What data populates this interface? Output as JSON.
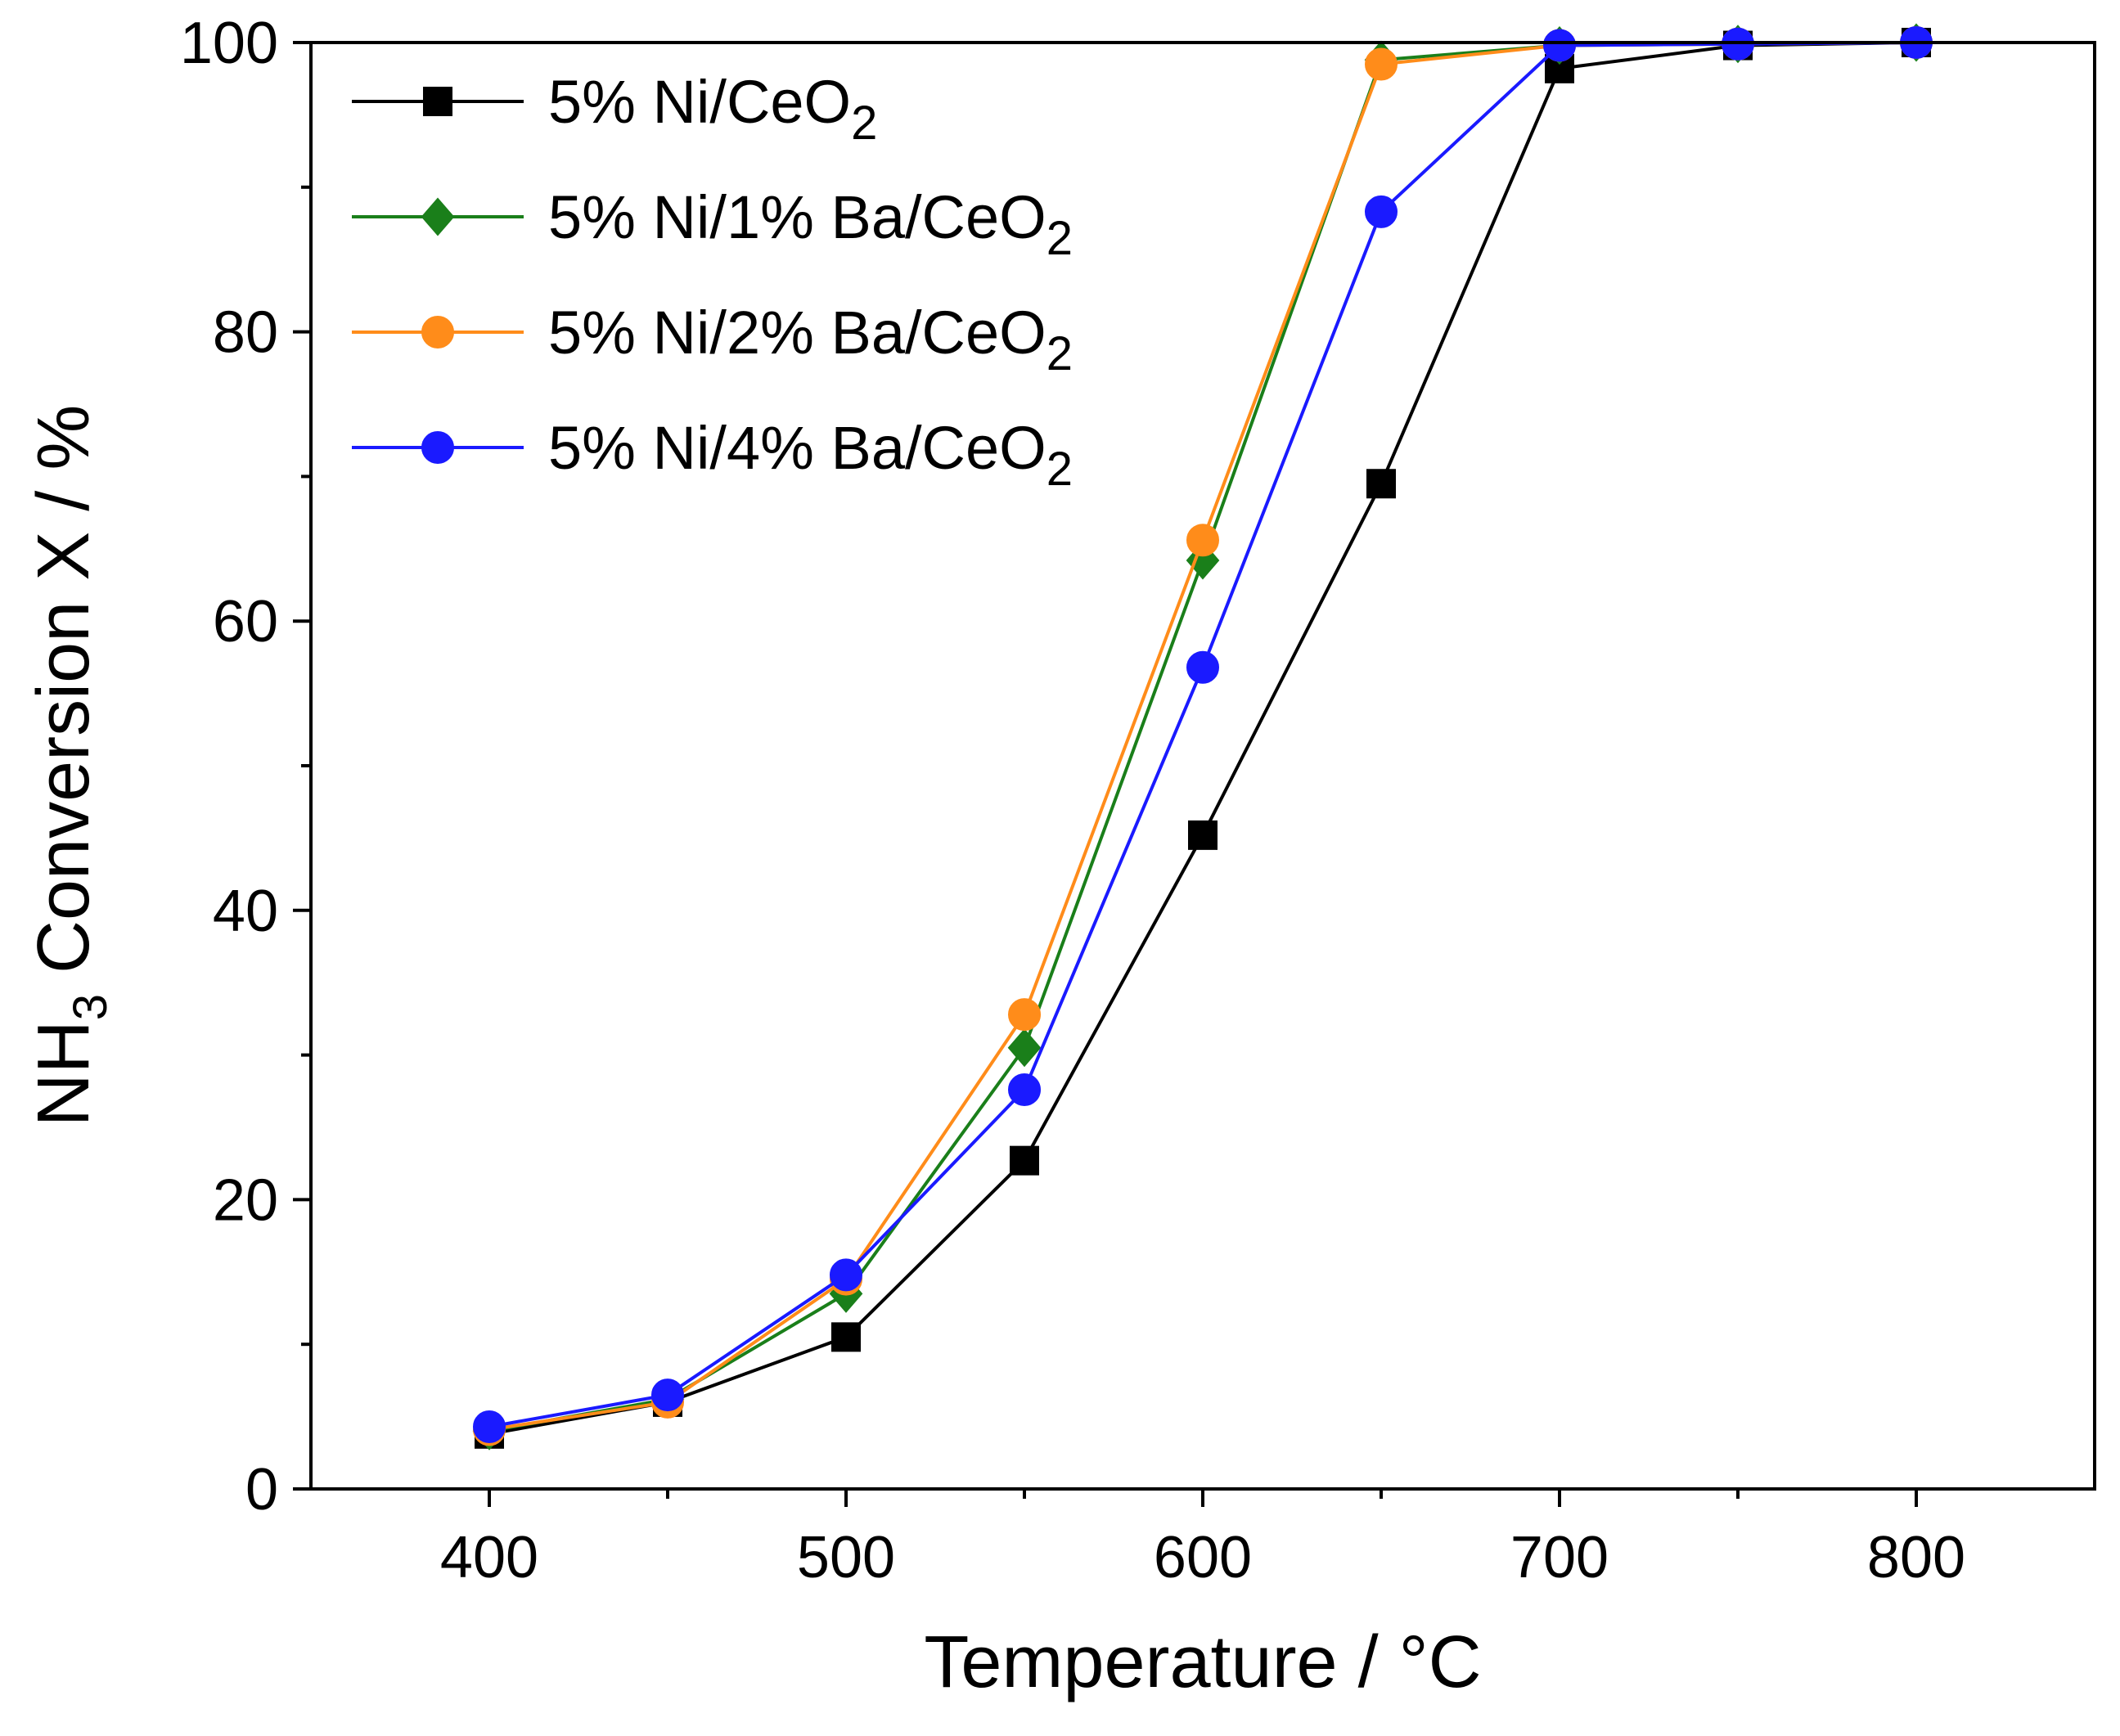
{
  "chart_data": {
    "type": "line",
    "title": "",
    "xlabel": "Temperature / °C",
    "ylabel": {
      "prefix": "NH",
      "subscript": "3",
      "suffix": " Conversion X / %"
    },
    "xlim": [
      350,
      850
    ],
    "ylim": [
      0,
      100
    ],
    "xticks": [
      400,
      500,
      600,
      700,
      800
    ],
    "xminor": [
      450,
      550,
      650,
      750
    ],
    "yticks": [
      0,
      20,
      40,
      60,
      80,
      100
    ],
    "yminor": [
      10,
      30,
      50,
      70,
      90
    ],
    "legend_position": "top-left",
    "x": [
      400,
      450,
      500,
      550,
      600,
      650,
      700,
      750,
      800
    ],
    "series": [
      {
        "name": "5% Ni/CeO2",
        "label": {
          "main": "5% Ni/CeO",
          "sub": "2"
        },
        "color": "#000000",
        "marker": "square",
        "values": [
          3.8,
          6.0,
          10.5,
          22.7,
          45.2,
          69.5,
          98.2,
          99.8,
          100.0
        ]
      },
      {
        "name": "5% Ni/1% Ba/CeO2",
        "label": {
          "main": "5% Ni/1% Ba/CeO",
          "sub": "2"
        },
        "color": "#1a7f1a",
        "marker": "diamond",
        "values": [
          4.0,
          6.2,
          13.5,
          30.5,
          64.2,
          98.8,
          99.8,
          99.9,
          100.0
        ]
      },
      {
        "name": "5% Ni/2% Ba/CeO2",
        "label": {
          "main": "5% Ni/2% Ba/CeO",
          "sub": "2"
        },
        "color": "#ff8c1a",
        "marker": "circle",
        "values": [
          4.1,
          6.0,
          14.5,
          32.8,
          65.6,
          98.5,
          99.8,
          99.9,
          100.0
        ]
      },
      {
        "name": "5% Ni/4% Ba/CeO2",
        "label": {
          "main": "5% Ni/4% Ba/CeO",
          "sub": "2"
        },
        "color": "#1a1aff",
        "marker": "circle",
        "values": [
          4.3,
          6.5,
          14.8,
          27.6,
          56.8,
          88.3,
          99.8,
          99.9,
          100.0
        ]
      }
    ]
  }
}
